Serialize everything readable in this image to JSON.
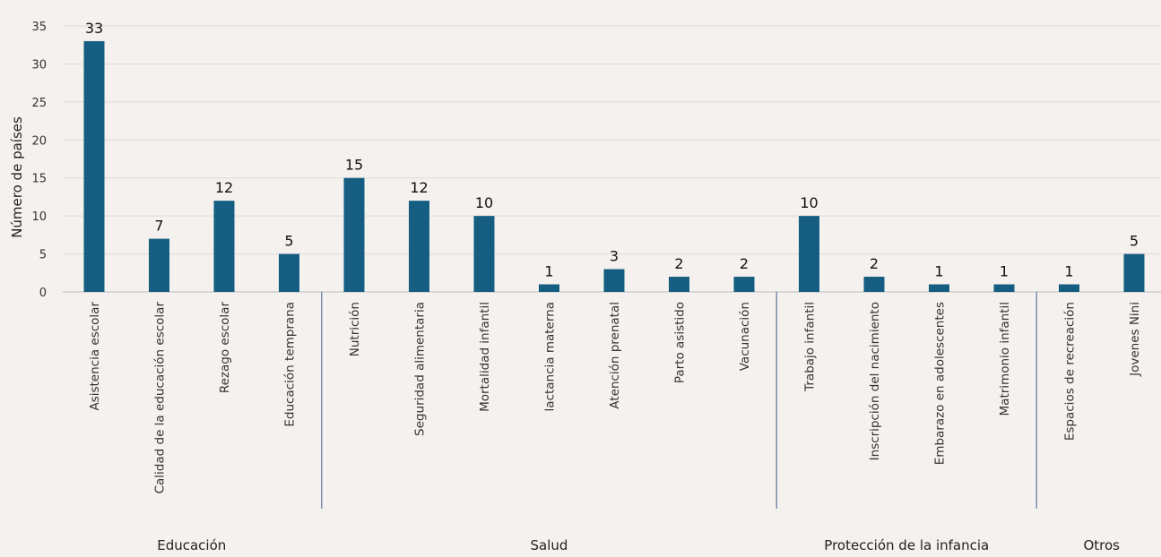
{
  "chart_data": {
    "type": "bar",
    "title": "",
    "xlabel": "",
    "ylabel": "Número de países",
    "ylim": [
      0,
      35
    ],
    "yticks": [
      0,
      5,
      10,
      15,
      20,
      25,
      30,
      35
    ],
    "grid": true,
    "legend": "none",
    "bar_color": "#155e82",
    "separator_color": "#7a8ea8",
    "categories": [
      "Asistencia escolar",
      "Calidad de la educación escolar",
      "Rezago escolar",
      "Educación temprana",
      "Nutrición",
      "Seguridad alimentaria",
      "Mortalidad infantil",
      "lactancia materna",
      "Atención prenatal",
      "Parto asistido",
      "Vacunación",
      "Trabajo infantil",
      "Inscripción del nacimiento",
      "Embarazo en adolescentes",
      "Matrimonio infantil",
      "Espacios de recreación",
      "Jovenes Nini"
    ],
    "values": [
      33,
      7,
      12,
      5,
      15,
      12,
      10,
      1,
      3,
      2,
      2,
      10,
      2,
      1,
      1,
      1,
      5
    ],
    "groups": [
      {
        "name": "Educación",
        "count": 4
      },
      {
        "name": "Salud",
        "count": 7
      },
      {
        "name": "Protección de la infancia",
        "count": 4
      },
      {
        "name": "Otros",
        "count": 2
      }
    ]
  }
}
